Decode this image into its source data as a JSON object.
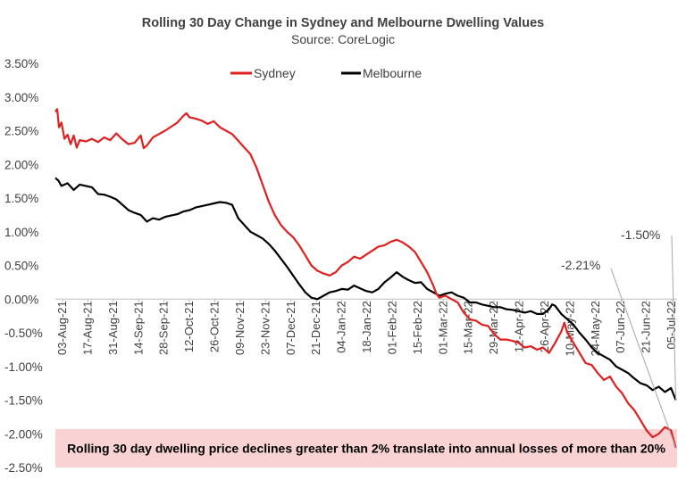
{
  "chart_data": {
    "type": "line",
    "title": "Rolling 30 Day Change in Sydney and Melbourne Dwelling Values",
    "subtitle": "Source: CoreLogic",
    "xlabel": "",
    "ylabel": "",
    "ylim": [
      -2.5,
      3.5
    ],
    "yticks": [
      "3.50%",
      "3.00%",
      "2.50%",
      "2.00%",
      "1.50%",
      "1.00%",
      "0.50%",
      "0.00%",
      "-0.50%",
      "-1.00%",
      "-1.50%",
      "-2.00%",
      "-2.50%"
    ],
    "ytick_values": [
      3.5,
      3.0,
      2.5,
      2.0,
      1.5,
      1.0,
      0.5,
      0.0,
      -0.5,
      -1.0,
      -1.5,
      -2.0,
      -2.5
    ],
    "categories": [
      "03-Aug-21",
      "17-Aug-21",
      "31-Aug-21",
      "14-Sep-21",
      "28-Sep-21",
      "12-Oct-21",
      "26-Oct-21",
      "09-Nov-21",
      "23-Nov-21",
      "07-Dec-21",
      "21-Dec-21",
      "04-Jan-22",
      "18-Jan-22",
      "01-Feb-22",
      "15-Feb-22",
      "01-Mar-22",
      "15-Mar-22",
      "29-Mar-22",
      "12-Apr-22",
      "26-Apr-22",
      "10-May-22",
      "24-May-22",
      "07-Jun-22",
      "21-Jun-22",
      "05-Jul-22"
    ],
    "grid": false,
    "legend": "top",
    "series": [
      {
        "name": "Sydney",
        "color": "#e02020",
        "points": [
          [
            0,
            2.78
          ],
          [
            0.3,
            2.82
          ],
          [
            0.6,
            2.55
          ],
          [
            1,
            2.62
          ],
          [
            1.5,
            2.38
          ],
          [
            2,
            2.44
          ],
          [
            2.5,
            2.3
          ],
          [
            3,
            2.43
          ],
          [
            3.5,
            2.25
          ],
          [
            4,
            2.36
          ],
          [
            5,
            2.34
          ],
          [
            6,
            2.38
          ],
          [
            7,
            2.33
          ],
          [
            8,
            2.4
          ],
          [
            9,
            2.36
          ],
          [
            10,
            2.46
          ],
          [
            11,
            2.37
          ],
          [
            12,
            2.3
          ],
          [
            13,
            2.32
          ],
          [
            14,
            2.43
          ],
          [
            14.5,
            2.24
          ],
          [
            15,
            2.28
          ],
          [
            16,
            2.4
          ],
          [
            17,
            2.45
          ],
          [
            18,
            2.5
          ],
          [
            19,
            2.56
          ],
          [
            20,
            2.62
          ],
          [
            21,
            2.72
          ],
          [
            21.5,
            2.76
          ],
          [
            22,
            2.7
          ],
          [
            23,
            2.68
          ],
          [
            24,
            2.65
          ],
          [
            25,
            2.6
          ],
          [
            26,
            2.64
          ],
          [
            27,
            2.55
          ],
          [
            28,
            2.5
          ],
          [
            29,
            2.45
          ],
          [
            30,
            2.35
          ],
          [
            31,
            2.25
          ],
          [
            32,
            2.15
          ],
          [
            33,
            1.95
          ],
          [
            34,
            1.7
          ],
          [
            35,
            1.45
          ],
          [
            36,
            1.25
          ],
          [
            37,
            1.1
          ],
          [
            38,
            1.0
          ],
          [
            39,
            0.92
          ],
          [
            40,
            0.8
          ],
          [
            41,
            0.65
          ],
          [
            42,
            0.5
          ],
          [
            43,
            0.42
          ],
          [
            44,
            0.38
          ],
          [
            45,
            0.35
          ],
          [
            46,
            0.4
          ],
          [
            47,
            0.5
          ],
          [
            48,
            0.55
          ],
          [
            49,
            0.63
          ],
          [
            50,
            0.6
          ],
          [
            51,
            0.66
          ],
          [
            52,
            0.72
          ],
          [
            53,
            0.78
          ],
          [
            54,
            0.8
          ],
          [
            55,
            0.85
          ],
          [
            56,
            0.88
          ],
          [
            57,
            0.84
          ],
          [
            58,
            0.78
          ],
          [
            59,
            0.7
          ],
          [
            60,
            0.55
          ],
          [
            61,
            0.4
          ],
          [
            62,
            0.2
          ],
          [
            62.5,
            0.08
          ],
          [
            63,
            0.02
          ],
          [
            64,
            0.05
          ],
          [
            65,
            0.0
          ],
          [
            66,
            -0.05
          ],
          [
            67,
            -0.2
          ],
          [
            68,
            -0.3
          ],
          [
            69,
            -0.32
          ],
          [
            70,
            -0.38
          ],
          [
            71,
            -0.4
          ],
          [
            72,
            -0.52
          ],
          [
            73,
            -0.6
          ],
          [
            74,
            -0.6
          ],
          [
            75,
            -0.62
          ],
          [
            76,
            -0.65
          ],
          [
            77,
            -0.72
          ],
          [
            78,
            -0.7
          ],
          [
            79,
            -0.75
          ],
          [
            80,
            -0.72
          ],
          [
            81,
            -0.8
          ],
          [
            82,
            -0.65
          ],
          [
            83,
            -0.48
          ],
          [
            83.5,
            -0.35
          ],
          [
            84,
            -0.5
          ],
          [
            85,
            -0.65
          ],
          [
            86,
            -0.8
          ],
          [
            87,
            -0.95
          ],
          [
            88,
            -0.98
          ],
          [
            89,
            -1.1
          ],
          [
            90,
            -1.2
          ],
          [
            91,
            -1.15
          ],
          [
            92,
            -1.3
          ],
          [
            93,
            -1.4
          ],
          [
            94,
            -1.55
          ],
          [
            95,
            -1.65
          ],
          [
            96,
            -1.8
          ],
          [
            97,
            -1.95
          ],
          [
            98,
            -2.05
          ],
          [
            99,
            -2.0
          ],
          [
            100,
            -1.9
          ],
          [
            101,
            -1.95
          ],
          [
            101.8,
            -2.21
          ]
        ]
      },
      {
        "name": "Melbourne",
        "color": "#000000",
        "points": [
          [
            0,
            1.8
          ],
          [
            0.5,
            1.76
          ],
          [
            1,
            1.68
          ],
          [
            2,
            1.72
          ],
          [
            3,
            1.62
          ],
          [
            4,
            1.7
          ],
          [
            5,
            1.68
          ],
          [
            6,
            1.66
          ],
          [
            7,
            1.56
          ],
          [
            8,
            1.55
          ],
          [
            9,
            1.52
          ],
          [
            10,
            1.48
          ],
          [
            11,
            1.4
          ],
          [
            12,
            1.32
          ],
          [
            13,
            1.28
          ],
          [
            14,
            1.25
          ],
          [
            15,
            1.15
          ],
          [
            16,
            1.2
          ],
          [
            17,
            1.18
          ],
          [
            18,
            1.22
          ],
          [
            19,
            1.24
          ],
          [
            20,
            1.26
          ],
          [
            21,
            1.3
          ],
          [
            22,
            1.32
          ],
          [
            23,
            1.36
          ],
          [
            24,
            1.38
          ],
          [
            25,
            1.4
          ],
          [
            26,
            1.42
          ],
          [
            27,
            1.44
          ],
          [
            28,
            1.43
          ],
          [
            29,
            1.4
          ],
          [
            30,
            1.2
          ],
          [
            31,
            1.1
          ],
          [
            32,
            1.0
          ],
          [
            33,
            0.95
          ],
          [
            34,
            0.9
          ],
          [
            35,
            0.82
          ],
          [
            36,
            0.72
          ],
          [
            37,
            0.6
          ],
          [
            38,
            0.48
          ],
          [
            39,
            0.35
          ],
          [
            40,
            0.22
          ],
          [
            41,
            0.1
          ],
          [
            42,
            0.02
          ],
          [
            43,
            0.0
          ],
          [
            44,
            0.05
          ],
          [
            45,
            0.1
          ],
          [
            46,
            0.12
          ],
          [
            47,
            0.15
          ],
          [
            48,
            0.14
          ],
          [
            49,
            0.2
          ],
          [
            50,
            0.16
          ],
          [
            51,
            0.12
          ],
          [
            52,
            0.1
          ],
          [
            53,
            0.15
          ],
          [
            54,
            0.25
          ],
          [
            55,
            0.32
          ],
          [
            56,
            0.4
          ],
          [
            57,
            0.33
          ],
          [
            58,
            0.28
          ],
          [
            59,
            0.24
          ],
          [
            60,
            0.25
          ],
          [
            61,
            0.15
          ],
          [
            62,
            0.1
          ],
          [
            63,
            0.05
          ],
          [
            64,
            0.08
          ],
          [
            65,
            0.1
          ],
          [
            66,
            0.05
          ],
          [
            67,
            0.02
          ],
          [
            68,
            -0.05
          ],
          [
            69,
            -0.05
          ],
          [
            70,
            -0.08
          ],
          [
            71,
            -0.1
          ],
          [
            72,
            -0.12
          ],
          [
            73,
            -0.12
          ],
          [
            74,
            -0.15
          ],
          [
            75,
            -0.16
          ],
          [
            76,
            -0.18
          ],
          [
            77,
            -0.2
          ],
          [
            78,
            -0.18
          ],
          [
            79,
            -0.22
          ],
          [
            80,
            -0.22
          ],
          [
            81,
            -0.15
          ],
          [
            81.5,
            -0.08
          ],
          [
            82,
            -0.1
          ],
          [
            83,
            -0.22
          ],
          [
            84,
            -0.3
          ],
          [
            85,
            -0.38
          ],
          [
            86,
            -0.5
          ],
          [
            87,
            -0.6
          ],
          [
            88,
            -0.72
          ],
          [
            89,
            -0.8
          ],
          [
            90,
            -0.85
          ],
          [
            91,
            -0.9
          ],
          [
            92,
            -1.0
          ],
          [
            93,
            -1.05
          ],
          [
            94,
            -1.1
          ],
          [
            95,
            -1.18
          ],
          [
            96,
            -1.25
          ],
          [
            97,
            -1.28
          ],
          [
            98,
            -1.35
          ],
          [
            99,
            -1.3
          ],
          [
            100,
            -1.38
          ],
          [
            101,
            -1.32
          ],
          [
            101.8,
            -1.5
          ]
        ]
      }
    ],
    "annotations": [
      {
        "text": "-1.50%",
        "series": "Melbourne"
      },
      {
        "text": "-2.21%",
        "series": "Sydney"
      }
    ],
    "band": {
      "from": -1.93,
      "to": -2.5,
      "color": "#f9d3d3",
      "text": "Rolling 30 day dwelling price declines greater than 2% translate into annual losses of more than 20%"
    }
  }
}
